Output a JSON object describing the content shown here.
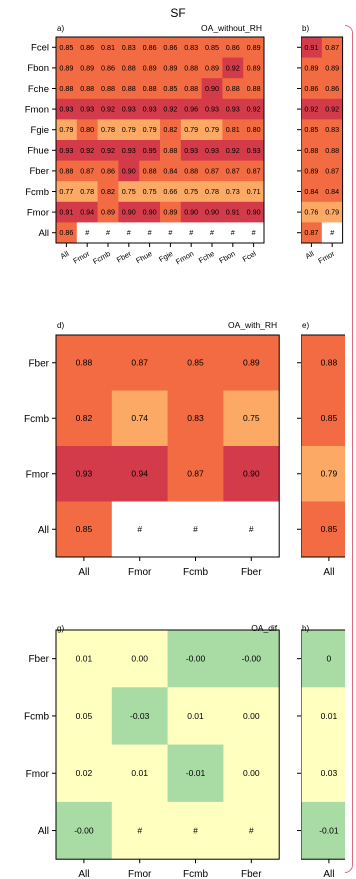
{
  "title": "SF",
  "colors": {
    "hi": "#d33a4a",
    "mid": "#f26b42",
    "lo": "#fba964",
    "pale": "#ffffc0",
    "green": "#a9dba4",
    "none": "#ffffff",
    "frame": "#e06a7e"
  },
  "chart_data": [
    {
      "panel": "a)",
      "title": "OA_without_RH",
      "type": "heatmap",
      "rows": [
        "Fcel",
        "Fbon",
        "Fche",
        "Fmon",
        "Fgie",
        "Fhue",
        "Fber",
        "Fcmb",
        "Fmor",
        "All"
      ],
      "cols": [
        "All",
        "Fmor",
        "Fcmb",
        "Fber",
        "Fhue",
        "Fgie",
        "Fmon",
        "Fche",
        "Fbon",
        "Fcel"
      ],
      "values": [
        [
          "0.85",
          "0.86",
          "0.81",
          "0.83",
          "0.86",
          "0.86",
          "0.83",
          "0.85",
          "0.86",
          "0.89"
        ],
        [
          "0.89",
          "0.89",
          "0.86",
          "0.88",
          "0.89",
          "0.89",
          "0.88",
          "0.89",
          "0.92",
          "0.89"
        ],
        [
          "0.88",
          "0.88",
          "0.88",
          "0.88",
          "0.88",
          "0.85",
          "0.88",
          "0.90",
          "0.88",
          "0.88"
        ],
        [
          "0.93",
          "0.93",
          "0.92",
          "0.93",
          "0.93",
          "0.92",
          "0.96",
          "0.93",
          "0.93",
          "0.92"
        ],
        [
          "0.79",
          "0.80",
          "0.78",
          "0.79",
          "0.79",
          "0.82",
          "0.79",
          "0.79",
          "0.81",
          "0.80"
        ],
        [
          "0.93",
          "0.92",
          "0.92",
          "0.93",
          "0.95",
          "0.88",
          "0.93",
          "0.93",
          "0.92",
          "0.93"
        ],
        [
          "0.88",
          "0.87",
          "0.86",
          "0.90",
          "0.88",
          "0.84",
          "0.88",
          "0.87",
          "0.87",
          "0.87"
        ],
        [
          "0.77",
          "0.78",
          "0.82",
          "0.75",
          "0.75",
          "0.66",
          "0.75",
          "0.78",
          "0.73",
          "0.71"
        ],
        [
          "0.91",
          "0.94",
          "0.89",
          "0.90",
          "0.90",
          "0.89",
          "0.90",
          "0.90",
          "0.91",
          "0.90"
        ],
        [
          "0.86",
          "#",
          "#",
          "#",
          "#",
          "#",
          "#",
          "#",
          "#",
          "#"
        ]
      ],
      "colors": [
        [
          "mid",
          "mid",
          "mid",
          "mid",
          "mid",
          "mid",
          "mid",
          "mid",
          "mid",
          "mid"
        ],
        [
          "mid",
          "mid",
          "mid",
          "mid",
          "mid",
          "mid",
          "mid",
          "mid",
          "hi",
          "mid"
        ],
        [
          "mid",
          "mid",
          "mid",
          "mid",
          "mid",
          "mid",
          "mid",
          "hi",
          "mid",
          "mid"
        ],
        [
          "hi",
          "hi",
          "hi",
          "hi",
          "hi",
          "hi",
          "hi",
          "hi",
          "hi",
          "hi"
        ],
        [
          "lo",
          "mid",
          "lo",
          "lo",
          "lo",
          "mid",
          "lo",
          "lo",
          "mid",
          "mid"
        ],
        [
          "hi",
          "hi",
          "hi",
          "hi",
          "hi",
          "mid",
          "hi",
          "hi",
          "hi",
          "hi"
        ],
        [
          "mid",
          "mid",
          "mid",
          "hi",
          "mid",
          "mid",
          "mid",
          "mid",
          "mid",
          "mid"
        ],
        [
          "lo",
          "lo",
          "mid",
          "lo",
          "lo",
          "lo",
          "lo",
          "lo",
          "lo",
          "lo"
        ],
        [
          "hi",
          "hi",
          "mid",
          "hi",
          "hi",
          "mid",
          "hi",
          "hi",
          "hi",
          "hi"
        ],
        [
          "mid",
          "none",
          "none",
          "none",
          "none",
          "none",
          "none",
          "none",
          "none",
          "none"
        ]
      ]
    },
    {
      "panel": "b)",
      "title": "",
      "type": "heatmap",
      "rows": [
        "Fcel",
        "Fbon",
        "Fche",
        "Fmon",
        "Fgie",
        "Fhue",
        "Fber",
        "Fcmb",
        "Fmor",
        "All"
      ],
      "cols": [
        "All",
        "Fmor"
      ],
      "values": [
        [
          "0.91",
          "0.87"
        ],
        [
          "0.89",
          "0.89"
        ],
        [
          "0.86",
          "0.86"
        ],
        [
          "0.92",
          "0.92"
        ],
        [
          "0.85",
          "0.83"
        ],
        [
          "0.88",
          "0.88"
        ],
        [
          "0.89",
          "0.87"
        ],
        [
          "0.84",
          "0.84"
        ],
        [
          "0.76",
          "0.79"
        ],
        [
          "0.87",
          "#"
        ]
      ],
      "colors": [
        [
          "hi",
          "mid"
        ],
        [
          "mid",
          "mid"
        ],
        [
          "mid",
          "mid"
        ],
        [
          "hi",
          "hi"
        ],
        [
          "mid",
          "mid"
        ],
        [
          "mid",
          "mid"
        ],
        [
          "mid",
          "mid"
        ],
        [
          "mid",
          "mid"
        ],
        [
          "lo",
          "lo"
        ],
        [
          "mid",
          "none"
        ]
      ]
    },
    {
      "panel": "d)",
      "title": "OA_with_RH",
      "type": "heatmap",
      "rows": [
        "Fber",
        "Fcmb",
        "Fmor",
        "All"
      ],
      "cols": [
        "All",
        "Fmor",
        "Fcmb",
        "Fber"
      ],
      "values": [
        [
          "0.88",
          "0.87",
          "0.85",
          "0.89"
        ],
        [
          "0.82",
          "0.74",
          "0.83",
          "0.75"
        ],
        [
          "0.93",
          "0.94",
          "0.87",
          "0.90"
        ],
        [
          "0.85",
          "#",
          "#",
          "#"
        ]
      ],
      "colors": [
        [
          "mid",
          "mid",
          "mid",
          "mid"
        ],
        [
          "mid",
          "lo",
          "mid",
          "lo"
        ],
        [
          "hi",
          "hi",
          "mid",
          "hi"
        ],
        [
          "mid",
          "none",
          "none",
          "none"
        ]
      ]
    },
    {
      "panel": "e)",
      "title": "",
      "type": "heatmap",
      "rows": [
        "Fber",
        "Fcmb",
        "Fmor",
        "All"
      ],
      "cols": [
        "All"
      ],
      "values": [
        [
          "0.88"
        ],
        [
          "0.85"
        ],
        [
          "0.79"
        ],
        [
          "0.85"
        ]
      ],
      "colors": [
        [
          "mid"
        ],
        [
          "mid"
        ],
        [
          "lo"
        ],
        [
          "mid"
        ]
      ]
    },
    {
      "panel": "g)",
      "title": "OA_dif",
      "type": "heatmap",
      "rows": [
        "Fber",
        "Fcmb",
        "Fmor",
        "All"
      ],
      "cols": [
        "All",
        "Fmor",
        "Fcmb",
        "Fber"
      ],
      "values": [
        [
          "0.01",
          "0.00",
          "-0.00",
          "-0.00"
        ],
        [
          "0.05",
          "-0.03",
          "0.01",
          "0.00"
        ],
        [
          "0.02",
          "0.01",
          "-0.01",
          "0.00"
        ],
        [
          "-0.00",
          "#",
          "#",
          "#"
        ]
      ],
      "colors": [
        [
          "pale",
          "pale",
          "green",
          "green"
        ],
        [
          "pale",
          "green",
          "pale",
          "pale"
        ],
        [
          "pale",
          "pale",
          "green",
          "pale"
        ],
        [
          "green",
          "pale",
          "pale",
          "pale"
        ]
      ]
    },
    {
      "panel": "h)",
      "title": "",
      "type": "heatmap",
      "rows": [
        "Fber",
        "Fcmb",
        "Fmor",
        "All"
      ],
      "cols": [
        "All"
      ],
      "values": [
        [
          "0"
        ],
        [
          "0.01"
        ],
        [
          "0.03"
        ],
        [
          "-0.01"
        ]
      ],
      "colors": [
        [
          "green"
        ],
        [
          "pale"
        ],
        [
          "pale"
        ],
        [
          "green"
        ]
      ]
    }
  ]
}
